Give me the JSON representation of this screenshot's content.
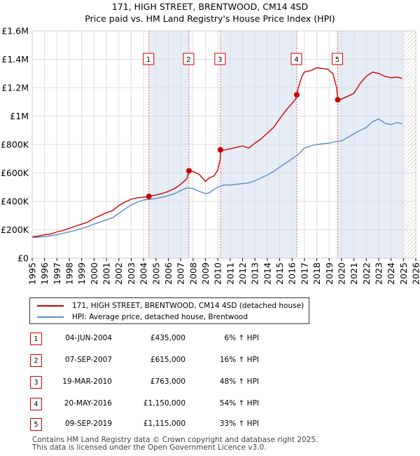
{
  "chart_data": {
    "type": "line",
    "title": "171, HIGH STREET, BRENTWOOD, CM14 4SD",
    "subtitle": "Price paid vs. HM Land Registry's House Price Index (HPI)",
    "xlim": [
      1995,
      2026
    ],
    "ylim": [
      0,
      1600000
    ],
    "x_ticks": [
      1995,
      1996,
      1997,
      1998,
      1999,
      2000,
      2001,
      2002,
      2003,
      2004,
      2005,
      2006,
      2007,
      2008,
      2009,
      2010,
      2011,
      2012,
      2013,
      2014,
      2015,
      2016,
      2017,
      2018,
      2019,
      2020,
      2021,
      2022,
      2023,
      2024,
      2025,
      2026
    ],
    "y_ticks": [
      {
        "value": 0,
        "label": "£0"
      },
      {
        "value": 200000,
        "label": "£200K"
      },
      {
        "value": 400000,
        "label": "£400K"
      },
      {
        "value": 600000,
        "label": "£600K"
      },
      {
        "value": 800000,
        "label": "£800K"
      },
      {
        "value": 1000000,
        "label": "£1M"
      },
      {
        "value": 1200000,
        "label": "£1.2M"
      },
      {
        "value": 1400000,
        "label": "£1.4M"
      },
      {
        "value": 1600000,
        "label": "£1.6M"
      }
    ],
    "series": [
      {
        "name": "171, HIGH STREET, BRENTWOOD, CM14 4SD (detached house)",
        "color": "#cc0000",
        "x": [
          1995,
          1995.5,
          1996,
          1996.5,
          1997,
          1997.5,
          1998,
          1998.5,
          1999,
          1999.5,
          2000,
          2000.5,
          2001,
          2001.5,
          2002,
          2002.5,
          2003,
          2003.5,
          2004,
          2004.4,
          2004.43,
          2005,
          2005.5,
          2006,
          2006.5,
          2007,
          2007.5,
          2007.67,
          2008,
          2008.5,
          2009,
          2009.3,
          2009.7,
          2010,
          2010.2,
          2010.21,
          2010.5,
          2011,
          2011.5,
          2012,
          2012.5,
          2013,
          2013.5,
          2014,
          2014.5,
          2015,
          2015.5,
          2016,
          2016.3,
          2016.38,
          2016.5,
          2016.8,
          2017,
          2017.5,
          2018,
          2018.5,
          2018.9,
          2019,
          2019.3,
          2019.6,
          2019.69,
          2020,
          2020.5,
          2021,
          2021.5,
          2022,
          2022.5,
          2023,
          2023.5,
          2024,
          2024.5,
          2024.9
        ],
        "y": [
          150000,
          155000,
          165000,
          170000,
          185000,
          195000,
          210000,
          225000,
          240000,
          255000,
          280000,
          300000,
          320000,
          335000,
          370000,
          395000,
          415000,
          425000,
          430000,
          432000,
          435000,
          445000,
          455000,
          470000,
          490000,
          520000,
          560000,
          615000,
          610000,
          590000,
          540000,
          565000,
          580000,
          620000,
          700000,
          763000,
          760000,
          770000,
          780000,
          790000,
          775000,
          810000,
          840000,
          880000,
          920000,
          980000,
          1040000,
          1090000,
          1120000,
          1150000,
          1200000,
          1280000,
          1310000,
          1320000,
          1340000,
          1335000,
          1330000,
          1320000,
          1300000,
          1200000,
          1115000,
          1120000,
          1140000,
          1160000,
          1230000,
          1280000,
          1310000,
          1300000,
          1280000,
          1270000,
          1275000,
          1265000
        ]
      },
      {
        "name": "HPI: Average price, detached house, Brentwood",
        "color": "#5b8cc8",
        "x": [
          1995,
          1995.5,
          1996,
          1996.5,
          1997,
          1997.5,
          1998,
          1998.5,
          1999,
          1999.5,
          2000,
          2000.5,
          2001,
          2001.5,
          2002,
          2002.5,
          2003,
          2003.5,
          2004,
          2004.5,
          2005,
          2005.5,
          2006,
          2006.5,
          2007,
          2007.5,
          2008,
          2008.5,
          2009,
          2009.3,
          2009.7,
          2010,
          2010.5,
          2011,
          2011.5,
          2012,
          2012.5,
          2013,
          2013.5,
          2014,
          2014.5,
          2015,
          2015.5,
          2016,
          2016.5,
          2017,
          2017.5,
          2018,
          2018.5,
          2019,
          2019.5,
          2020,
          2020.5,
          2021,
          2021.5,
          2022,
          2022.5,
          2023,
          2023.5,
          2024,
          2024.5,
          2024.9
        ],
        "y": [
          145000,
          148000,
          152000,
          158000,
          165000,
          175000,
          185000,
          195000,
          210000,
          222000,
          240000,
          255000,
          270000,
          285000,
          315000,
          345000,
          375000,
          395000,
          410000,
          415000,
          420000,
          430000,
          440000,
          455000,
          475000,
          495000,
          490000,
          470000,
          455000,
          460000,
          485000,
          500000,
          515000,
          515000,
          520000,
          525000,
          530000,
          545000,
          565000,
          585000,
          610000,
          640000,
          670000,
          700000,
          730000,
          775000,
          790000,
          800000,
          805000,
          810000,
          820000,
          825000,
          850000,
          875000,
          900000,
          920000,
          960000,
          980000,
          950000,
          940000,
          955000,
          945000
        ]
      }
    ],
    "sales": [
      {
        "label": "1",
        "x": 2004.43,
        "y": 435000
      },
      {
        "label": "2",
        "x": 2007.67,
        "y": 615000
      },
      {
        "label": "3",
        "x": 2010.21,
        "y": 763000
      },
      {
        "label": "4",
        "x": 2016.38,
        "y": 1150000
      },
      {
        "label": "5",
        "x": 2019.69,
        "y": 1115000
      }
    ],
    "shaded_spans": [
      [
        2004.43,
        2007.67
      ],
      [
        2010.21,
        2016.38
      ],
      [
        2019.69,
        2025.0
      ]
    ],
    "hatched_from": 2025.0
  },
  "legend": {
    "red_label": "171, HIGH STREET, BRENTWOOD, CM14 4SD (detached house)",
    "blue_label": "HPI: Average price, detached house, Brentwood",
    "red_color": "#cc0000",
    "blue_color": "#5b8cc8"
  },
  "transactions": [
    {
      "num": "1",
      "date": "04-JUN-2004",
      "price": "£435,000",
      "hpi": "6% ↑ HPI"
    },
    {
      "num": "2",
      "date": "07-SEP-2007",
      "price": "£615,000",
      "hpi": "16% ↑ HPI"
    },
    {
      "num": "3",
      "date": "19-MAR-2010",
      "price": "£763,000",
      "hpi": "48% ↑ HPI"
    },
    {
      "num": "4",
      "date": "20-MAY-2016",
      "price": "£1,150,000",
      "hpi": "54% ↑ HPI"
    },
    {
      "num": "5",
      "date": "09-SEP-2019",
      "price": "£1,115,000",
      "hpi": "33% ↑ HPI"
    }
  ],
  "footer": {
    "line1": "Contains HM Land Registry data © Crown copyright and database right 2025.",
    "line2": "This data is licensed under the Open Government Licence v3.0."
  }
}
